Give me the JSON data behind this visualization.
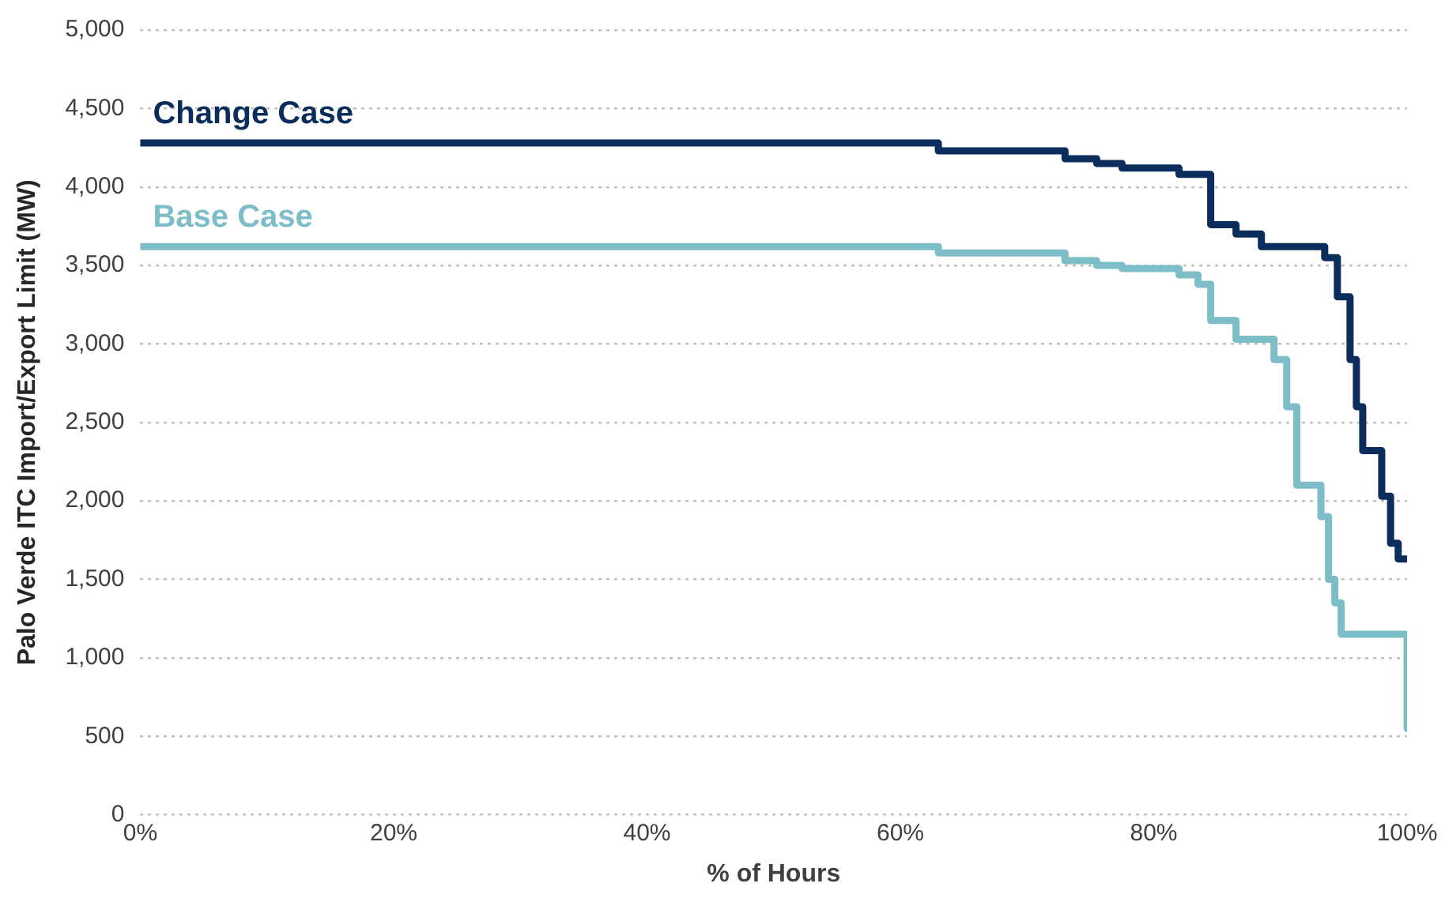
{
  "chart_data": {
    "type": "step",
    "xlabel": "% of Hours",
    "ylabel": "Palo Verde ITC Import/Export Limit (MW)",
    "xlim": [
      0,
      100
    ],
    "xticks": [
      {
        "value": 0,
        "label": "0%"
      },
      {
        "value": 20,
        "label": "20%"
      },
      {
        "value": 40,
        "label": "40%"
      },
      {
        "value": 60,
        "label": "60%"
      },
      {
        "value": 80,
        "label": "80%"
      },
      {
        "value": 100,
        "label": "100%"
      }
    ],
    "ylim": [
      0,
      5000
    ],
    "yticks": [
      {
        "value": 0,
        "label": "0"
      },
      {
        "value": 500,
        "label": "500"
      },
      {
        "value": 1000,
        "label": "1,000"
      },
      {
        "value": 1500,
        "label": "1,500"
      },
      {
        "value": 2000,
        "label": "2,000"
      },
      {
        "value": 2500,
        "label": "2,500"
      },
      {
        "value": 3000,
        "label": "3,000"
      },
      {
        "value": 3500,
        "label": "3,500"
      },
      {
        "value": 4000,
        "label": "4,000"
      },
      {
        "value": 4500,
        "label": "4,500"
      },
      {
        "value": 5000,
        "label": "5,000"
      }
    ],
    "grid": "y",
    "legend": false,
    "line_style": "solid",
    "marker": "none",
    "series": [
      {
        "name": "Change Case",
        "color": "#0b2d5b",
        "x": [
          0,
          63,
          73,
          75.5,
          77.5,
          82,
          84.5,
          86.5,
          88.5,
          93.5,
          94.5,
          95.5,
          96,
          96.5,
          98,
          98.7,
          99.3,
          100
        ],
        "values": [
          4280,
          4230,
          4180,
          4150,
          4120,
          4080,
          3760,
          3700,
          3620,
          3550,
          3300,
          2900,
          2600,
          2320,
          2030,
          1730,
          1630,
          1630
        ]
      },
      {
        "name": "Base Case",
        "color": "#7dbdc8",
        "x": [
          0,
          63,
          73,
          75.5,
          77.5,
          82,
          83.5,
          84.5,
          86.5,
          89.5,
          90.5,
          91.3,
          93.2,
          93.8,
          94.3,
          94.8,
          95.2,
          100,
          100
        ],
        "values": [
          3620,
          3580,
          3530,
          3500,
          3480,
          3440,
          3380,
          3150,
          3030,
          2900,
          2600,
          2100,
          1900,
          1500,
          1350,
          1150,
          1150,
          1150,
          550
        ]
      }
    ]
  }
}
